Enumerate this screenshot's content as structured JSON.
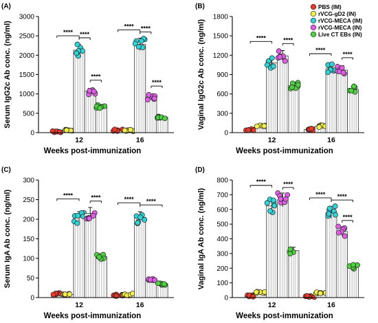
{
  "legend": [
    {
      "label": "PBS (IM)",
      "color": "#e8392b"
    },
    {
      "label": "rVCG-gD2 (IN)",
      "color": "#f2ef4f"
    },
    {
      "label": "rVCG-MECA (IM)",
      "color": "#2fd3d6"
    },
    {
      "label": "rVCG-MECA (IN)",
      "color": "#e05ee6"
    },
    {
      "label": "Live CT EBs (IN)",
      "color": "#4ed13f"
    }
  ],
  "sig_label": "****",
  "chart_data": [
    {
      "type": "bar",
      "panel": "(A)",
      "ylabel": "Serum IgG2c Ab conc. (ng/ml)",
      "xlabel": "Weeks post-immunization",
      "ylim": [
        0,
        3000
      ],
      "yticks": [
        0,
        500,
        1000,
        1500,
        2000,
        2500,
        3000
      ],
      "categories": [
        "12",
        "16"
      ],
      "series": [
        {
          "name": "PBS (IM)",
          "values": [
            30,
            60
          ]
        },
        {
          "name": "rVCG-gD2 (IN)",
          "values": [
            70,
            60
          ]
        },
        {
          "name": "rVCG-MECA (IM)",
          "values": [
            2130,
            2280
          ]
        },
        {
          "name": "rVCG-MECA (IN)",
          "values": [
            1070,
            920
          ]
        },
        {
          "name": "Live CT EBs (IN)",
          "values": [
            680,
            400
          ]
        }
      ],
      "significance": [
        {
          "group": 0,
          "from": 2,
          "to": 0,
          "level": 3,
          "label": "****"
        },
        {
          "group": 0,
          "from": 2,
          "to": 3,
          "level": 2,
          "label": "****"
        },
        {
          "group": 0,
          "from": 3,
          "to": 4,
          "level": 1,
          "label": "****"
        },
        {
          "group": 1,
          "from": 2,
          "to": 0,
          "level": 3,
          "label": "****"
        },
        {
          "group": 1,
          "from": 2,
          "to": 3,
          "level": 2,
          "label": "****"
        },
        {
          "group": 1,
          "from": 3,
          "to": 4,
          "level": 1,
          "label": "****"
        }
      ]
    },
    {
      "type": "bar",
      "panel": "(B)",
      "ylabel": "Vaginal IgG2c Ab conc. (ng/ml)",
      "xlabel": "Weeks post-immunization",
      "ylim": [
        0,
        1800
      ],
      "yticks": [
        0,
        300,
        600,
        900,
        1200,
        1500,
        1800
      ],
      "categories": [
        "12",
        "16"
      ],
      "series": [
        {
          "name": "PBS (IM)",
          "values": [
            50,
            50
          ]
        },
        {
          "name": "rVCG-gD2 (IN)",
          "values": [
            100,
            100
          ]
        },
        {
          "name": "rVCG-MECA (IM)",
          "values": [
            1080,
            1000
          ]
        },
        {
          "name": "rVCG-MECA (IN)",
          "values": [
            1190,
            970
          ]
        },
        {
          "name": "Live CT EBs (IN)",
          "values": [
            730,
            670
          ]
        }
      ],
      "significance": [
        {
          "group": 0,
          "from": 2,
          "to": 0,
          "level": 3,
          "label": "****"
        },
        {
          "group": 0,
          "from": 3,
          "to": 4,
          "level": 2,
          "label": "****"
        },
        {
          "group": 1,
          "from": 2,
          "to": 0,
          "level": 3,
          "label": "****"
        },
        {
          "group": 1,
          "from": 3,
          "to": 4,
          "level": 2,
          "label": "****"
        }
      ]
    },
    {
      "type": "bar",
      "panel": "(C)",
      "ylabel": "Serum IgA Ab conc. (ng/ml)",
      "xlabel": "Weeks post-immunization",
      "ylim": [
        0,
        300
      ],
      "yticks": [
        0,
        50,
        100,
        150,
        200,
        250,
        300
      ],
      "categories": [
        "12",
        "16"
      ],
      "series": [
        {
          "name": "PBS (IM)",
          "values": [
            10,
            6
          ]
        },
        {
          "name": "rVCG-gD2 (IN)",
          "values": [
            8,
            8
          ]
        },
        {
          "name": "rVCG-MECA (IM)",
          "values": [
            205,
            205
          ]
        },
        {
          "name": "rVCG-MECA (IN)",
          "values": [
            215,
            45
          ]
        },
        {
          "name": "Live CT EBs (IN)",
          "values": [
            105,
            35
          ]
        }
      ],
      "significance": [
        {
          "group": 0,
          "from": 2,
          "to": 0,
          "level": 3,
          "label": "****"
        },
        {
          "group": 0,
          "from": 3,
          "to": 4,
          "level": 2,
          "label": "****"
        },
        {
          "group": 1,
          "from": 2,
          "to": 0,
          "level": 3,
          "label": "****"
        },
        {
          "group": 1,
          "from": 2,
          "to": 4,
          "level": 2,
          "label": "****"
        }
      ]
    },
    {
      "type": "bar",
      "panel": "(D)",
      "ylabel": "Vaginal IgA Ab conc. (ng/ml)",
      "xlabel": "Weeks post-immunization",
      "ylim": [
        0,
        800
      ],
      "yticks": [
        0,
        100,
        200,
        300,
        400,
        500,
        600,
        700,
        800
      ],
      "categories": [
        "12",
        "16"
      ],
      "series": [
        {
          "name": "PBS (IM)",
          "values": [
            10,
            10
          ]
        },
        {
          "name": "rVCG-gD2 (IN)",
          "values": [
            35,
            35
          ]
        },
        {
          "name": "rVCG-MECA (IM)",
          "values": [
            625,
            580
          ]
        },
        {
          "name": "rVCG-MECA (IN)",
          "values": [
            665,
            450
          ]
        },
        {
          "name": "Live CT EBs (IN)",
          "values": [
            320,
            210
          ]
        }
      ],
      "significance": [
        {
          "group": 0,
          "from": 2,
          "to": 0,
          "level": 3,
          "label": "****"
        },
        {
          "group": 0,
          "from": 3,
          "to": 4,
          "level": 2,
          "label": "****"
        },
        {
          "group": 1,
          "from": 2,
          "to": 0,
          "level": 3,
          "label": "****"
        },
        {
          "group": 1,
          "from": 2,
          "to": 4,
          "level": 2,
          "label": "****"
        },
        {
          "group": 1,
          "from": 3,
          "to": 4,
          "level": 1,
          "label": "****"
        }
      ]
    }
  ]
}
